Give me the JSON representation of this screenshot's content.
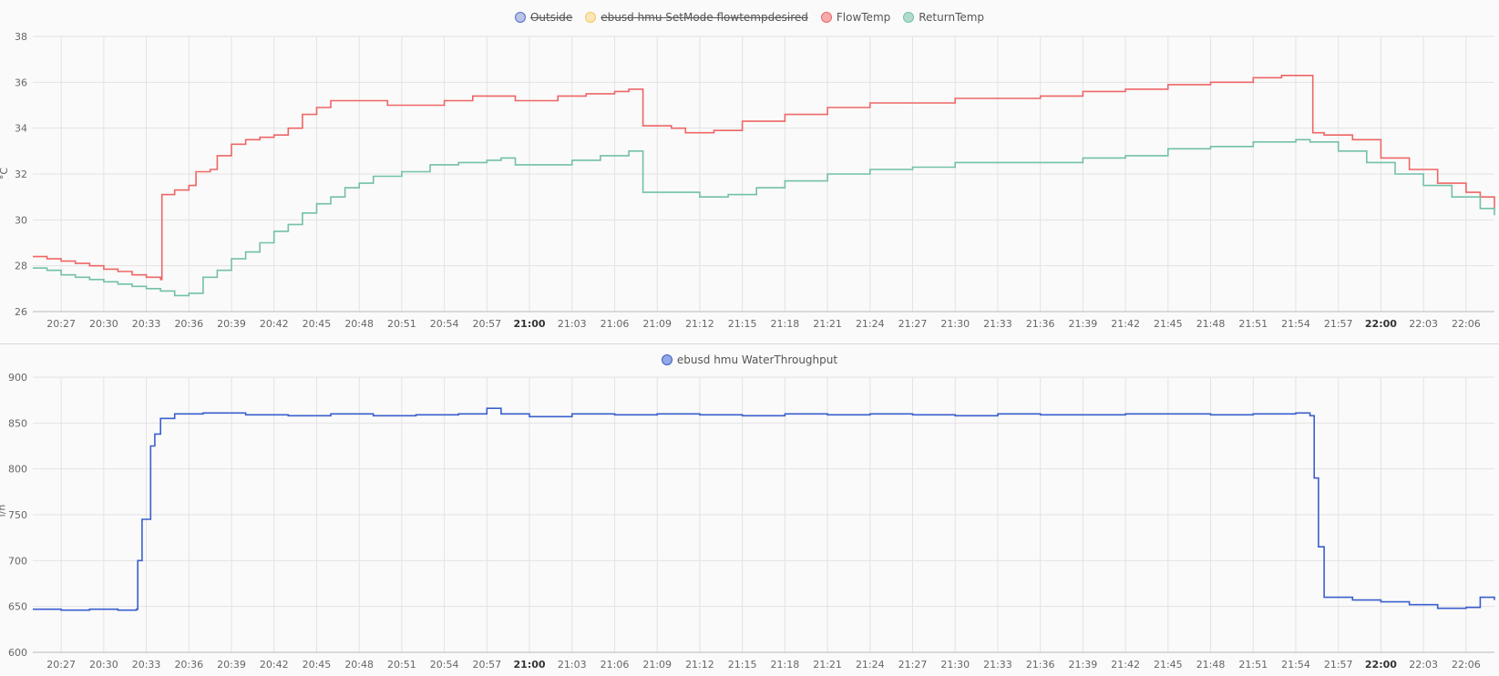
{
  "colors": {
    "Outside": "#5470c6",
    "ebusd hmu SetMode flowtempdesired": "#fac858",
    "FlowTemp": "#ee6666",
    "ReturnTemp": "#73c0a8",
    "ebusd hmu WaterThroughput": "#3a5fcd"
  },
  "x_ticks": [
    "20:27",
    "20:30",
    "20:33",
    "20:36",
    "20:39",
    "20:42",
    "20:45",
    "20:48",
    "20:51",
    "20:54",
    "20:57",
    "21:00",
    "21:03",
    "21:06",
    "21:09",
    "21:12",
    "21:15",
    "21:18",
    "21:21",
    "21:24",
    "21:27",
    "21:30",
    "21:33",
    "21:36",
    "21:39",
    "21:42",
    "21:45",
    "21:48",
    "21:51",
    "21:54",
    "21:57",
    "22:00",
    "22:03",
    "22:06"
  ],
  "x_bold_ticks": [
    "21:00",
    "22:00"
  ],
  "chart_data": [
    {
      "type": "line",
      "legend": [
        {
          "name": "Outside",
          "hidden": true
        },
        {
          "name": "ebusd hmu SetMode flowtempdesired",
          "hidden": true
        },
        {
          "name": "FlowTemp",
          "hidden": false
        },
        {
          "name": "ReturnTemp",
          "hidden": false
        }
      ],
      "ylabel": "°C",
      "ylim": [
        26,
        38
      ],
      "y_ticks": [
        26,
        28,
        30,
        32,
        34,
        36,
        38
      ],
      "x_range": [
        "20:25",
        "22:08"
      ],
      "step": true,
      "series": [
        {
          "name": "FlowTemp",
          "points": [
            [
              "20:25",
              28.4
            ],
            [
              "20:26",
              28.3
            ],
            [
              "20:27",
              28.2
            ],
            [
              "20:28",
              28.1
            ],
            [
              "20:29",
              28.0
            ],
            [
              "20:30",
              27.85
            ],
            [
              "20:31",
              27.75
            ],
            [
              "20:32",
              27.6
            ],
            [
              "20:33",
              27.5
            ],
            [
              "20:34",
              27.4
            ],
            [
              "20:34.1",
              31.1
            ],
            [
              "20:35",
              31.3
            ],
            [
              "20:36",
              31.5
            ],
            [
              "20:36.5",
              32.1
            ],
            [
              "20:37.5",
              32.2
            ],
            [
              "20:38",
              32.8
            ],
            [
              "20:39",
              33.3
            ],
            [
              "20:40",
              33.5
            ],
            [
              "20:41",
              33.6
            ],
            [
              "20:42",
              33.7
            ],
            [
              "20:43",
              34.0
            ],
            [
              "20:44",
              34.6
            ],
            [
              "20:45",
              34.9
            ],
            [
              "20:46",
              35.2
            ],
            [
              "20:48",
              35.2
            ],
            [
              "20:50",
              35.0
            ],
            [
              "20:52",
              35.0
            ],
            [
              "20:54",
              35.2
            ],
            [
              "20:56",
              35.4
            ],
            [
              "20:58",
              35.4
            ],
            [
              "20:59",
              35.2
            ],
            [
              "21:01",
              35.2
            ],
            [
              "21:02",
              35.4
            ],
            [
              "21:04",
              35.5
            ],
            [
              "21:06",
              35.6
            ],
            [
              "21:07",
              35.7
            ],
            [
              "21:08",
              34.1
            ],
            [
              "21:10",
              34.0
            ],
            [
              "21:11",
              33.8
            ],
            [
              "21:13",
              33.9
            ],
            [
              "21:15",
              34.3
            ],
            [
              "21:18",
              34.6
            ],
            [
              "21:21",
              34.9
            ],
            [
              "21:24",
              35.1
            ],
            [
              "21:27",
              35.1
            ],
            [
              "21:30",
              35.3
            ],
            [
              "21:33",
              35.3
            ],
            [
              "21:36",
              35.4
            ],
            [
              "21:39",
              35.6
            ],
            [
              "21:42",
              35.7
            ],
            [
              "21:45",
              35.9
            ],
            [
              "21:48",
              36.0
            ],
            [
              "21:51",
              36.2
            ],
            [
              "21:53",
              36.3
            ],
            [
              "21:55",
              36.3
            ],
            [
              "21:55.2",
              33.8
            ],
            [
              "21:56",
              33.7
            ],
            [
              "21:58",
              33.5
            ],
            [
              "22:00",
              32.7
            ],
            [
              "22:02",
              32.2
            ],
            [
              "22:04",
              31.6
            ],
            [
              "22:06",
              31.2
            ],
            [
              "22:07",
              31.0
            ],
            [
              "22:08",
              30.5
            ]
          ]
        },
        {
          "name": "ReturnTemp",
          "points": [
            [
              "20:25",
              27.9
            ],
            [
              "20:26",
              27.8
            ],
            [
              "20:27",
              27.6
            ],
            [
              "20:28",
              27.5
            ],
            [
              "20:29",
              27.4
            ],
            [
              "20:30",
              27.3
            ],
            [
              "20:31",
              27.2
            ],
            [
              "20:32",
              27.1
            ],
            [
              "20:33",
              27.0
            ],
            [
              "20:34",
              26.9
            ],
            [
              "20:35",
              26.7
            ],
            [
              "20:36",
              26.8
            ],
            [
              "20:37",
              27.5
            ],
            [
              "20:38",
              27.8
            ],
            [
              "20:39",
              28.3
            ],
            [
              "20:40",
              28.6
            ],
            [
              "20:41",
              29.0
            ],
            [
              "20:42",
              29.5
            ],
            [
              "20:43",
              29.8
            ],
            [
              "20:44",
              30.3
            ],
            [
              "20:45",
              30.7
            ],
            [
              "20:46",
              31.0
            ],
            [
              "20:47",
              31.4
            ],
            [
              "20:48",
              31.6
            ],
            [
              "20:49",
              31.9
            ],
            [
              "20:51",
              32.1
            ],
            [
              "20:53",
              32.4
            ],
            [
              "20:55",
              32.5
            ],
            [
              "20:57",
              32.6
            ],
            [
              "20:58",
              32.7
            ],
            [
              "20:59",
              32.4
            ],
            [
              "21:01",
              32.4
            ],
            [
              "21:03",
              32.6
            ],
            [
              "21:05",
              32.8
            ],
            [
              "21:07",
              33.0
            ],
            [
              "21:08",
              31.2
            ],
            [
              "21:10",
              31.2
            ],
            [
              "21:12",
              31.0
            ],
            [
              "21:14",
              31.1
            ],
            [
              "21:16",
              31.4
            ],
            [
              "21:18",
              31.7
            ],
            [
              "21:21",
              32.0
            ],
            [
              "21:24",
              32.2
            ],
            [
              "21:27",
              32.3
            ],
            [
              "21:30",
              32.5
            ],
            [
              "21:33",
              32.5
            ],
            [
              "21:36",
              32.5
            ],
            [
              "21:39",
              32.7
            ],
            [
              "21:42",
              32.8
            ],
            [
              "21:45",
              33.1
            ],
            [
              "21:48",
              33.2
            ],
            [
              "21:51",
              33.4
            ],
            [
              "21:54",
              33.5
            ],
            [
              "21:55",
              33.4
            ],
            [
              "21:57",
              33.0
            ],
            [
              "21:59",
              32.5
            ],
            [
              "22:01",
              32.0
            ],
            [
              "22:03",
              31.5
            ],
            [
              "22:05",
              31.0
            ],
            [
              "22:07",
              30.5
            ],
            [
              "22:08",
              30.2
            ]
          ]
        }
      ]
    },
    {
      "type": "line",
      "legend": [
        {
          "name": "ebusd hmu WaterThroughput",
          "hidden": false
        }
      ],
      "ylabel": "l/h",
      "ylim": [
        600,
        900
      ],
      "y_ticks": [
        600,
        650,
        700,
        750,
        800,
        850,
        900
      ],
      "x_range": [
        "20:25",
        "22:08"
      ],
      "step": true,
      "series": [
        {
          "name": "ebusd hmu WaterThroughput",
          "points": [
            [
              "20:25",
              647
            ],
            [
              "20:27",
              646
            ],
            [
              "20:29",
              647
            ],
            [
              "20:31",
              646
            ],
            [
              "20:32.3",
              647
            ],
            [
              "20:32.4",
              700
            ],
            [
              "20:32.7",
              745
            ],
            [
              "20:33.3",
              825
            ],
            [
              "20:33.6",
              838
            ],
            [
              "20:34",
              855
            ],
            [
              "20:35",
              860
            ],
            [
              "20:37",
              861
            ],
            [
              "20:40",
              859
            ],
            [
              "20:43",
              858
            ],
            [
              "20:46",
              860
            ],
            [
              "20:49",
              858
            ],
            [
              "20:52",
              859
            ],
            [
              "20:55",
              860
            ],
            [
              "20:57",
              866
            ],
            [
              "20:58",
              860
            ],
            [
              "21:00",
              857
            ],
            [
              "21:03",
              860
            ],
            [
              "21:06",
              859
            ],
            [
              "21:09",
              860
            ],
            [
              "21:12",
              859
            ],
            [
              "21:15",
              858
            ],
            [
              "21:18",
              860
            ],
            [
              "21:21",
              859
            ],
            [
              "21:24",
              860
            ],
            [
              "21:27",
              859
            ],
            [
              "21:30",
              858
            ],
            [
              "21:33",
              860
            ],
            [
              "21:36",
              859
            ],
            [
              "21:39",
              859
            ],
            [
              "21:42",
              860
            ],
            [
              "21:45",
              860
            ],
            [
              "21:48",
              859
            ],
            [
              "21:51",
              860
            ],
            [
              "21:54",
              861
            ],
            [
              "21:55",
              858
            ],
            [
              "21:55.3",
              790
            ],
            [
              "21:55.6",
              715
            ],
            [
              "21:56",
              660
            ],
            [
              "21:58",
              657
            ],
            [
              "22:00",
              655
            ],
            [
              "22:02",
              652
            ],
            [
              "22:04",
              648
            ],
            [
              "22:06",
              649
            ],
            [
              "22:07",
              660
            ],
            [
              "22:08",
              657
            ]
          ]
        }
      ]
    }
  ]
}
